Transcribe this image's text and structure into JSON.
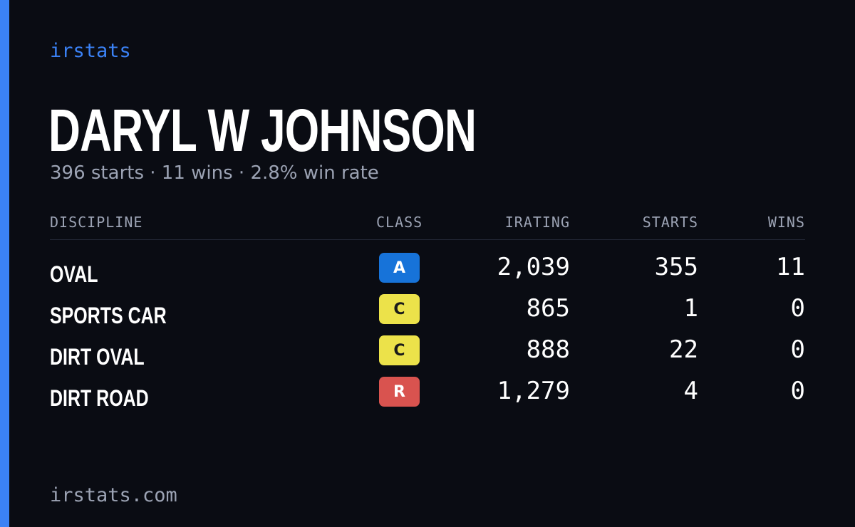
{
  "brand": "irstats",
  "driver": {
    "name": "DARYL W JOHNSON",
    "summary": "396 starts · 11 wins · 2.8% win rate"
  },
  "table": {
    "headers": {
      "discipline": "DISCIPLINE",
      "class": "CLASS",
      "irating": "IRATING",
      "starts": "STARTS",
      "wins": "WINS"
    },
    "rows": [
      {
        "discipline": "OVAL",
        "class": "A",
        "class_color": "#1773d9",
        "class_text_color": "#ffffff",
        "irating": "2,039",
        "starts": "355",
        "wins": "11"
      },
      {
        "discipline": "SPORTS CAR",
        "class": "C",
        "class_color": "#ece24a",
        "class_text_color": "#1a1a1a",
        "irating": "865",
        "starts": "1",
        "wins": "0"
      },
      {
        "discipline": "DIRT OVAL",
        "class": "C",
        "class_color": "#ece24a",
        "class_text_color": "#1a1a1a",
        "irating": "888",
        "starts": "22",
        "wins": "0"
      },
      {
        "discipline": "DIRT ROAD",
        "class": "R",
        "class_color": "#d9534f",
        "class_text_color": "#ffffff",
        "irating": "1,279",
        "starts": "4",
        "wins": "0"
      }
    ]
  },
  "footer": "irstats.com",
  "colors": {
    "background": "#0a0c13",
    "accent": "#3b82f6",
    "muted_text": "#9ca3b4"
  }
}
